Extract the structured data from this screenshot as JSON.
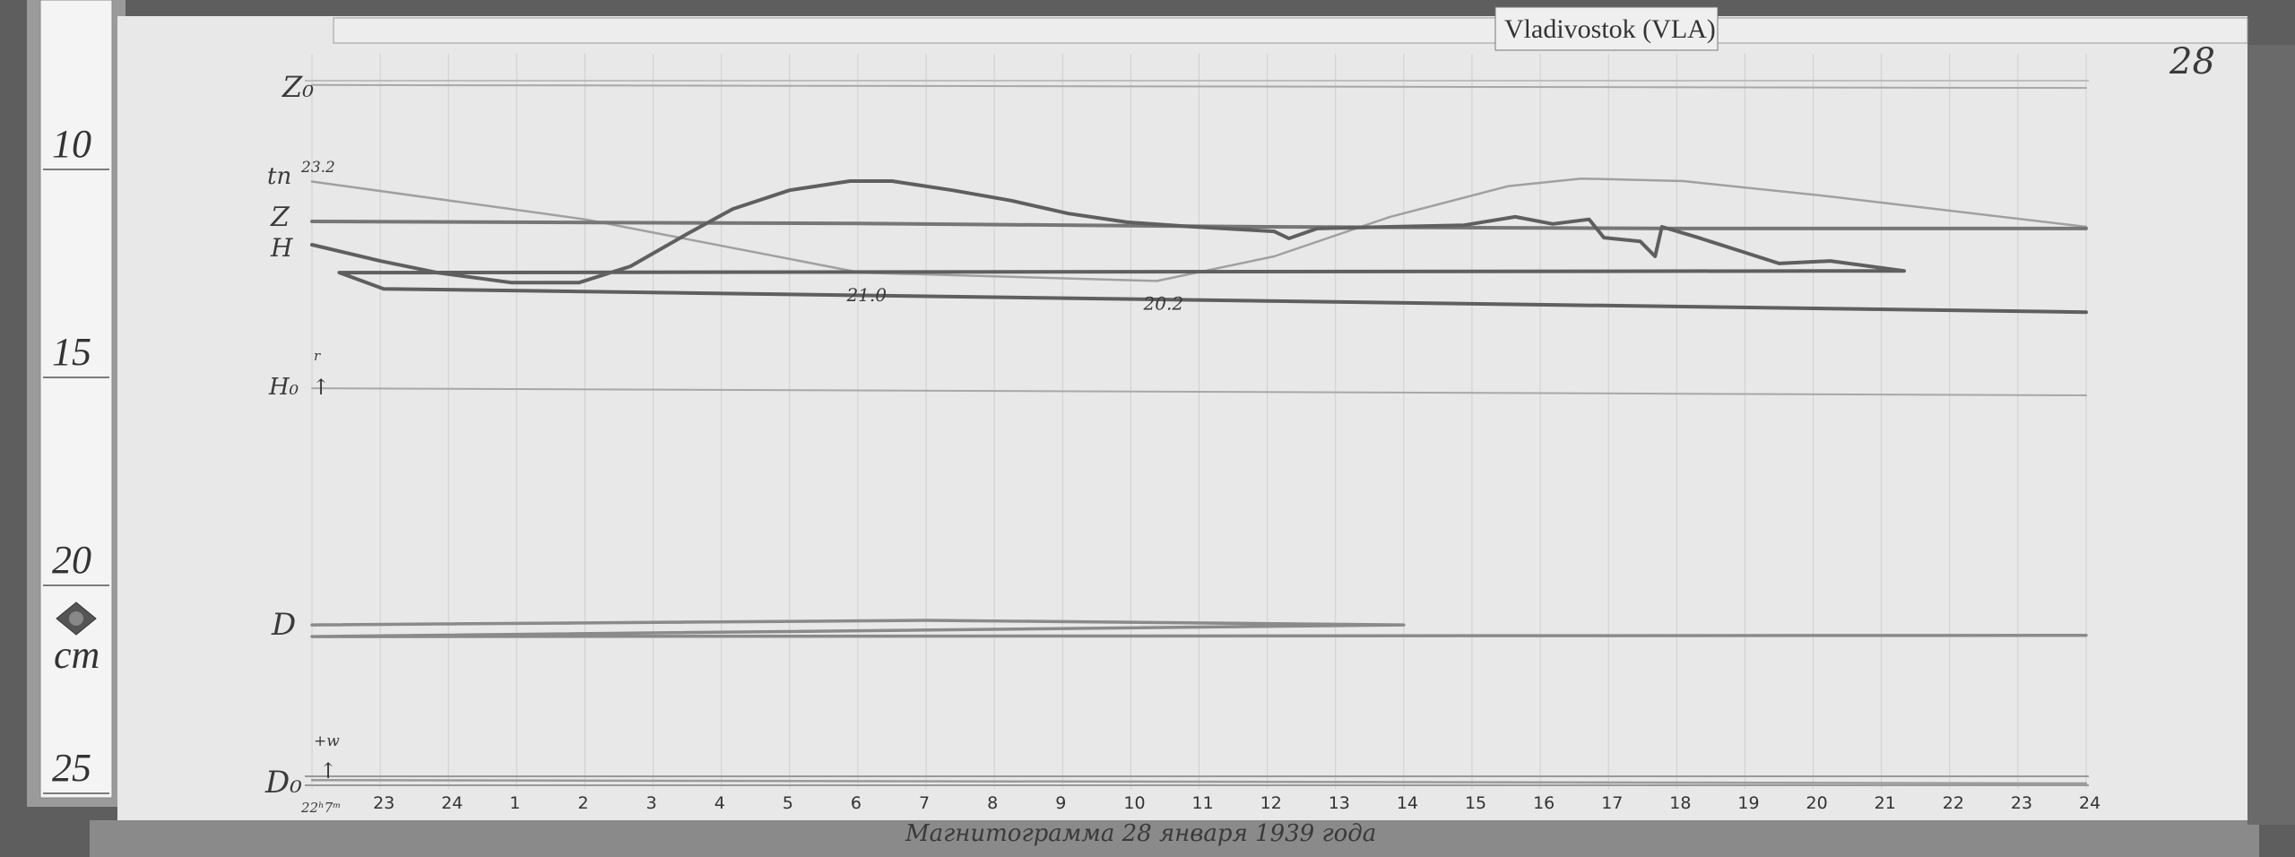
{
  "station_tag": "Vladivostok (VLA)",
  "sheet_number": "28",
  "caption": "Магнитограмма 28 января 1939 года",
  "ruler": {
    "labels": [
      "10",
      "15",
      "20",
      "25"
    ],
    "unit": "cm",
    "seal_icon": "seal-icon"
  },
  "colors": {
    "paper": "#e8e8e8",
    "ink": "#3a3a3a",
    "trace": "#6e6e6e",
    "background": "#5e5e5e"
  },
  "chart_data": {
    "type": "line",
    "title": "",
    "xlabel": "",
    "ylabel": "",
    "y_unit_from_ruler": "cm",
    "ylim": [
      7,
      25
    ],
    "grid": true,
    "x_ticks": [
      "22",
      "23",
      "24",
      "1",
      "2",
      "3",
      "4",
      "5",
      "6",
      "7",
      "8",
      "9",
      "10",
      "11",
      "12",
      "13",
      "14",
      "15",
      "16",
      "17",
      "18",
      "19",
      "20",
      "21",
      "22",
      "23",
      "24"
    ],
    "x_start_label": "22ʰ7ᵐ",
    "trace_labels": {
      "z0": "Z₀",
      "t": "tn",
      "t_start_value": "23.2",
      "z": "Z",
      "h": "H",
      "h0": "H₀",
      "h0_arrow": "↑",
      "h0_sup": "r",
      "d": "D",
      "d0": "D₀",
      "d0_sup": "+w",
      "d0_arrow": "↑"
    },
    "annotations": [
      {
        "text": "21.0",
        "series": "t",
        "x": "06:02"
      },
      {
        "text": "20.2",
        "series": "t",
        "x": "10:23"
      }
    ],
    "series": [
      {
        "key": "z0",
        "points": [
          [
            "22:00",
            7.97
          ],
          [
            "24:00",
            8.04
          ]
        ]
      },
      {
        "key": "t",
        "points": [
          [
            "22:00",
            10.29
          ],
          [
            "02:00",
            11.2
          ],
          [
            "06:02",
            12.48
          ],
          [
            "10:23",
            12.68
          ],
          [
            "12:06",
            12.09
          ],
          [
            "13:48",
            11.14
          ],
          [
            "15:32",
            10.4
          ],
          [
            "16:36",
            10.22
          ],
          [
            "18:06",
            10.28
          ],
          [
            "20:15",
            10.65
          ],
          [
            "24:00",
            11.38
          ]
        ]
      },
      {
        "key": "z",
        "points": [
          [
            "22:00",
            11.25
          ],
          [
            "06:00",
            11.3
          ],
          [
            "12:00",
            11.38
          ],
          [
            "18:00",
            11.42
          ],
          [
            "24:00",
            11.42
          ]
        ]
      },
      {
        "key": "h",
        "points": [
          [
            "22:00",
            11.81
          ],
          [
            "23:00",
            12.2
          ],
          [
            "23:50",
            12.48
          ],
          [
            "00:55",
            12.72
          ],
          [
            "01:55",
            12.72
          ],
          [
            "02:40",
            12.33
          ],
          [
            "03:30",
            11.55
          ],
          [
            "04:10",
            10.95
          ],
          [
            "05:00",
            10.5
          ],
          [
            "05:53",
            10.28
          ],
          [
            "06:30",
            10.28
          ],
          [
            "07:23",
            10.5
          ],
          [
            "08:15",
            10.75
          ],
          [
            "09:05",
            11.06
          ],
          [
            "09:57",
            11.27
          ],
          [
            "10:55",
            11.38
          ],
          [
            "12:06",
            11.49
          ],
          [
            "12:19",
            11.66
          ],
          [
            "12:44",
            11.42
          ],
          [
            "13:48",
            11.38
          ],
          [
            "14:53",
            11.34
          ],
          [
            "15:38",
            11.14
          ],
          [
            "16:11",
            11.31
          ],
          [
            "16:43",
            11.2
          ],
          [
            "16:56",
            11.64
          ],
          [
            "17:28",
            11.73
          ],
          [
            "17:41",
            12.09
          ],
          [
            "17:47",
            11.38
          ],
          [
            "18:19",
            11.64
          ],
          [
            "18:58",
            11.98
          ],
          [
            "19:30",
            12.26
          ],
          [
            "20:15",
            12.2
          ],
          [
            "21:20",
            12.44
          ],
          [
            "22:24",
            12.48
          ],
          [
            "23:03",
            12.87
          ],
          [
            "24:00",
            13.43
          ]
        ]
      },
      {
        "key": "h0",
        "points": [
          [
            "22:00",
            15.26
          ],
          [
            "24:00",
            15.43
          ]
        ]
      },
      {
        "key": "d",
        "points": [
          [
            "22:00",
            20.95
          ],
          [
            "07:00",
            20.84
          ],
          [
            "14:00",
            20.95
          ],
          [
            "22:00",
            21.23
          ],
          [
            "24:00",
            21.2
          ]
        ]
      },
      {
        "key": "d0",
        "points": [
          [
            "22:00",
            24.68
          ],
          [
            "24:00",
            24.76
          ]
        ]
      }
    ]
  }
}
